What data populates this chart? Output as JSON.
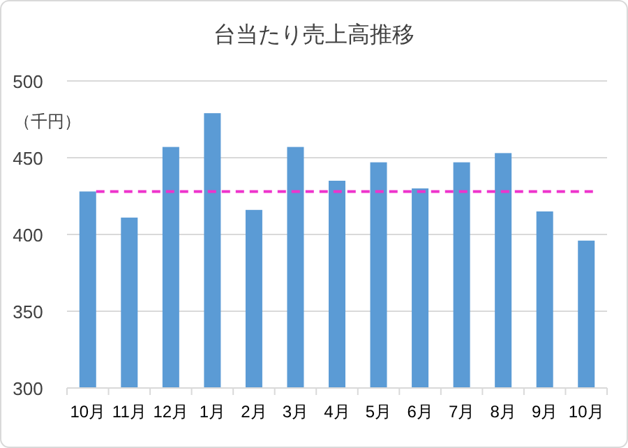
{
  "chart_data": {
    "type": "bar",
    "title": "台当たり売上高推移",
    "ylabel": "（千円）",
    "categories": [
      "10月",
      "11月",
      "12月",
      "1月",
      "2月",
      "3月",
      "4月",
      "5月",
      "6月",
      "7月",
      "8月",
      "9月",
      "10月"
    ],
    "series": [
      {
        "color": "#5b9bd5",
        "values": [
          428,
          411,
          457,
          479,
          416,
          457,
          435,
          447,
          430,
          447,
          453,
          415,
          396
        ]
      }
    ],
    "ylim": [
      300,
      500
    ],
    "yticks": [
      300,
      350,
      400,
      450,
      500
    ],
    "grid": "y",
    "ref_lines": [
      {
        "axis": "y",
        "value": 428,
        "color": "#ee33cc",
        "line_style": "dashed"
      }
    ]
  }
}
